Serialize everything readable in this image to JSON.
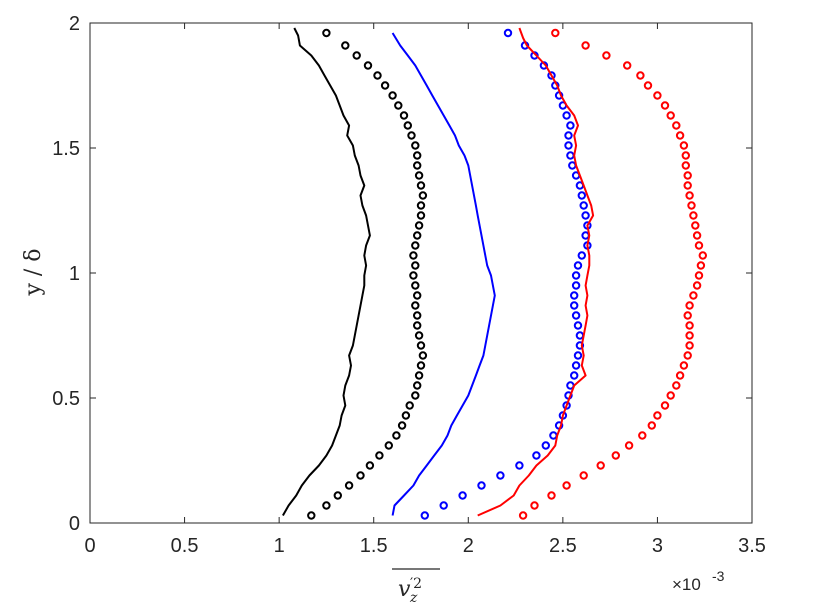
{
  "chart_data": {
    "type": "line",
    "xlabel": "v'z2",
    "ylabel": "y / δ",
    "x_exponent_label": "×10",
    "x_exponent_power": "-3",
    "xlim": [
      0,
      3.5
    ],
    "ylim": [
      0,
      2
    ],
    "xticks": [
      "0",
      "0.5",
      "1",
      "1.5",
      "2",
      "2.5",
      "3",
      "3.5"
    ],
    "yticks": [
      "0",
      "0.5",
      "1",
      "1.5",
      "2"
    ],
    "grid": false,
    "series": [
      {
        "style": "line",
        "color": "#000000",
        "points": [
          [
            1.02,
            0.03
          ],
          [
            1.05,
            0.07
          ],
          [
            1.09,
            0.11
          ],
          [
            1.12,
            0.15
          ],
          [
            1.16,
            0.19
          ],
          [
            1.21,
            0.23
          ],
          [
            1.25,
            0.27
          ],
          [
            1.28,
            0.31
          ],
          [
            1.3,
            0.35
          ],
          [
            1.32,
            0.39
          ],
          [
            1.33,
            0.43
          ],
          [
            1.35,
            0.47
          ],
          [
            1.34,
            0.51
          ],
          [
            1.35,
            0.55
          ],
          [
            1.37,
            0.59
          ],
          [
            1.38,
            0.63
          ],
          [
            1.37,
            0.67
          ],
          [
            1.39,
            0.71
          ],
          [
            1.4,
            0.75
          ],
          [
            1.41,
            0.79
          ],
          [
            1.42,
            0.83
          ],
          [
            1.43,
            0.87
          ],
          [
            1.44,
            0.91
          ],
          [
            1.45,
            0.95
          ],
          [
            1.45,
            0.99
          ],
          [
            1.46,
            1.03
          ],
          [
            1.45,
            1.07
          ],
          [
            1.46,
            1.11
          ],
          [
            1.48,
            1.15
          ],
          [
            1.47,
            1.19
          ],
          [
            1.46,
            1.23
          ],
          [
            1.44,
            1.27
          ],
          [
            1.43,
            1.31
          ],
          [
            1.45,
            1.35
          ],
          [
            1.43,
            1.39
          ],
          [
            1.42,
            1.43
          ],
          [
            1.4,
            1.47
          ],
          [
            1.39,
            1.51
          ],
          [
            1.36,
            1.55
          ],
          [
            1.37,
            1.59
          ],
          [
            1.34,
            1.63
          ],
          [
            1.32,
            1.67
          ],
          [
            1.3,
            1.71
          ],
          [
            1.27,
            1.75
          ],
          [
            1.24,
            1.79
          ],
          [
            1.21,
            1.83
          ],
          [
            1.17,
            1.87
          ],
          [
            1.11,
            1.91
          ],
          [
            1.1,
            1.95
          ],
          [
            1.08,
            1.98
          ]
        ]
      },
      {
        "style": "marker",
        "color": "#000000",
        "points": [
          [
            1.17,
            0.03
          ],
          [
            1.25,
            0.07
          ],
          [
            1.31,
            0.11
          ],
          [
            1.37,
            0.15
          ],
          [
            1.43,
            0.19
          ],
          [
            1.48,
            0.23
          ],
          [
            1.53,
            0.27
          ],
          [
            1.58,
            0.31
          ],
          [
            1.62,
            0.35
          ],
          [
            1.65,
            0.39
          ],
          [
            1.67,
            0.43
          ],
          [
            1.69,
            0.47
          ],
          [
            1.72,
            0.51
          ],
          [
            1.73,
            0.55
          ],
          [
            1.74,
            0.59
          ],
          [
            1.75,
            0.63
          ],
          [
            1.76,
            0.67
          ],
          [
            1.75,
            0.71
          ],
          [
            1.74,
            0.75
          ],
          [
            1.73,
            0.79
          ],
          [
            1.73,
            0.83
          ],
          [
            1.72,
            0.87
          ],
          [
            1.73,
            0.91
          ],
          [
            1.72,
            0.95
          ],
          [
            1.71,
            0.99
          ],
          [
            1.72,
            1.03
          ],
          [
            1.71,
            1.07
          ],
          [
            1.72,
            1.11
          ],
          [
            1.73,
            1.15
          ],
          [
            1.74,
            1.19
          ],
          [
            1.75,
            1.23
          ],
          [
            1.75,
            1.27
          ],
          [
            1.76,
            1.31
          ],
          [
            1.75,
            1.35
          ],
          [
            1.74,
            1.39
          ],
          [
            1.73,
            1.43
          ],
          [
            1.73,
            1.47
          ],
          [
            1.72,
            1.51
          ],
          [
            1.7,
            1.55
          ],
          [
            1.68,
            1.59
          ],
          [
            1.66,
            1.63
          ],
          [
            1.63,
            1.67
          ],
          [
            1.6,
            1.71
          ],
          [
            1.56,
            1.75
          ],
          [
            1.52,
            1.79
          ],
          [
            1.47,
            1.83
          ],
          [
            1.41,
            1.87
          ],
          [
            1.35,
            1.91
          ],
          [
            1.25,
            1.96
          ]
        ]
      },
      {
        "style": "line",
        "color": "#0000ff",
        "points": [
          [
            1.6,
            0.03
          ],
          [
            1.61,
            0.07
          ],
          [
            1.66,
            0.11
          ],
          [
            1.71,
            0.15
          ],
          [
            1.74,
            0.19
          ],
          [
            1.78,
            0.23
          ],
          [
            1.82,
            0.27
          ],
          [
            1.86,
            0.31
          ],
          [
            1.89,
            0.35
          ],
          [
            1.91,
            0.39
          ],
          [
            1.94,
            0.43
          ],
          [
            1.97,
            0.47
          ],
          [
            2.0,
            0.51
          ],
          [
            2.02,
            0.55
          ],
          [
            2.04,
            0.59
          ],
          [
            2.06,
            0.63
          ],
          [
            2.08,
            0.67
          ],
          [
            2.09,
            0.71
          ],
          [
            2.1,
            0.75
          ],
          [
            2.11,
            0.79
          ],
          [
            2.12,
            0.83
          ],
          [
            2.13,
            0.87
          ],
          [
            2.14,
            0.91
          ],
          [
            2.13,
            0.95
          ],
          [
            2.12,
            0.99
          ],
          [
            2.1,
            1.03
          ],
          [
            2.09,
            1.07
          ],
          [
            2.08,
            1.11
          ],
          [
            2.07,
            1.15
          ],
          [
            2.06,
            1.19
          ],
          [
            2.05,
            1.23
          ],
          [
            2.04,
            1.27
          ],
          [
            2.03,
            1.31
          ],
          [
            2.02,
            1.35
          ],
          [
            2.01,
            1.39
          ],
          [
            2.0,
            1.43
          ],
          [
            1.98,
            1.47
          ],
          [
            1.95,
            1.51
          ],
          [
            1.93,
            1.55
          ],
          [
            1.9,
            1.59
          ],
          [
            1.87,
            1.63
          ],
          [
            1.84,
            1.67
          ],
          [
            1.81,
            1.71
          ],
          [
            1.78,
            1.75
          ],
          [
            1.75,
            1.79
          ],
          [
            1.72,
            1.83
          ],
          [
            1.68,
            1.87
          ],
          [
            1.64,
            1.91
          ],
          [
            1.6,
            1.96
          ]
        ]
      },
      {
        "style": "marker",
        "color": "#0000ff",
        "points": [
          [
            1.77,
            0.03
          ],
          [
            1.87,
            0.07
          ],
          [
            1.97,
            0.11
          ],
          [
            2.07,
            0.15
          ],
          [
            2.17,
            0.19
          ],
          [
            2.27,
            0.23
          ],
          [
            2.36,
            0.27
          ],
          [
            2.41,
            0.31
          ],
          [
            2.45,
            0.35
          ],
          [
            2.48,
            0.39
          ],
          [
            2.5,
            0.43
          ],
          [
            2.52,
            0.47
          ],
          [
            2.53,
            0.51
          ],
          [
            2.54,
            0.55
          ],
          [
            2.56,
            0.59
          ],
          [
            2.57,
            0.63
          ],
          [
            2.58,
            0.67
          ],
          [
            2.59,
            0.71
          ],
          [
            2.59,
            0.75
          ],
          [
            2.58,
            0.79
          ],
          [
            2.57,
            0.83
          ],
          [
            2.56,
            0.87
          ],
          [
            2.56,
            0.91
          ],
          [
            2.57,
            0.95
          ],
          [
            2.57,
            0.99
          ],
          [
            2.58,
            1.03
          ],
          [
            2.6,
            1.07
          ],
          [
            2.63,
            1.11
          ],
          [
            2.62,
            1.15
          ],
          [
            2.63,
            1.19
          ],
          [
            2.62,
            1.23
          ],
          [
            2.61,
            1.27
          ],
          [
            2.6,
            1.31
          ],
          [
            2.59,
            1.35
          ],
          [
            2.57,
            1.39
          ],
          [
            2.55,
            1.43
          ],
          [
            2.54,
            1.47
          ],
          [
            2.53,
            1.51
          ],
          [
            2.53,
            1.55
          ],
          [
            2.54,
            1.59
          ],
          [
            2.52,
            1.63
          ],
          [
            2.5,
            1.67
          ],
          [
            2.48,
            1.71
          ],
          [
            2.46,
            1.75
          ],
          [
            2.44,
            1.79
          ],
          [
            2.4,
            1.83
          ],
          [
            2.35,
            1.87
          ],
          [
            2.3,
            1.91
          ],
          [
            2.21,
            1.96
          ]
        ]
      },
      {
        "style": "line",
        "color": "#ff0000",
        "points": [
          [
            2.05,
            0.03
          ],
          [
            2.17,
            0.07
          ],
          [
            2.24,
            0.11
          ],
          [
            2.27,
            0.15
          ],
          [
            2.32,
            0.19
          ],
          [
            2.36,
            0.23
          ],
          [
            2.42,
            0.27
          ],
          [
            2.46,
            0.31
          ],
          [
            2.47,
            0.35
          ],
          [
            2.49,
            0.39
          ],
          [
            2.5,
            0.43
          ],
          [
            2.52,
            0.47
          ],
          [
            2.54,
            0.51
          ],
          [
            2.56,
            0.55
          ],
          [
            2.62,
            0.59
          ],
          [
            2.6,
            0.63
          ],
          [
            2.61,
            0.67
          ],
          [
            2.6,
            0.71
          ],
          [
            2.61,
            0.75
          ],
          [
            2.62,
            0.79
          ],
          [
            2.63,
            0.83
          ],
          [
            2.62,
            0.87
          ],
          [
            2.63,
            0.91
          ],
          [
            2.62,
            0.95
          ],
          [
            2.63,
            0.99
          ],
          [
            2.64,
            1.03
          ],
          [
            2.64,
            1.07
          ],
          [
            2.63,
            1.11
          ],
          [
            2.64,
            1.15
          ],
          [
            2.63,
            1.19
          ],
          [
            2.66,
            1.23
          ],
          [
            2.65,
            1.27
          ],
          [
            2.63,
            1.31
          ],
          [
            2.61,
            1.35
          ],
          [
            2.59,
            1.39
          ],
          [
            2.57,
            1.43
          ],
          [
            2.56,
            1.47
          ],
          [
            2.57,
            1.51
          ],
          [
            2.56,
            1.55
          ],
          [
            2.58,
            1.59
          ],
          [
            2.56,
            1.63
          ],
          [
            2.52,
            1.67
          ],
          [
            2.49,
            1.71
          ],
          [
            2.47,
            1.75
          ],
          [
            2.44,
            1.79
          ],
          [
            2.41,
            1.83
          ],
          [
            2.36,
            1.87
          ],
          [
            2.31,
            1.91
          ],
          [
            2.29,
            1.94
          ],
          [
            2.27,
            1.98
          ]
        ]
      },
      {
        "style": "marker",
        "color": "#ff0000",
        "points": [
          [
            2.29,
            0.03
          ],
          [
            2.35,
            0.07
          ],
          [
            2.44,
            0.11
          ],
          [
            2.52,
            0.15
          ],
          [
            2.61,
            0.19
          ],
          [
            2.7,
            0.23
          ],
          [
            2.78,
            0.27
          ],
          [
            2.85,
            0.31
          ],
          [
            2.92,
            0.35
          ],
          [
            2.97,
            0.39
          ],
          [
            3.0,
            0.43
          ],
          [
            3.04,
            0.47
          ],
          [
            3.07,
            0.51
          ],
          [
            3.1,
            0.55
          ],
          [
            3.12,
            0.59
          ],
          [
            3.14,
            0.63
          ],
          [
            3.16,
            0.67
          ],
          [
            3.17,
            0.71
          ],
          [
            3.17,
            0.75
          ],
          [
            3.17,
            0.79
          ],
          [
            3.16,
            0.83
          ],
          [
            3.17,
            0.87
          ],
          [
            3.19,
            0.91
          ],
          [
            3.21,
            0.95
          ],
          [
            3.22,
            0.99
          ],
          [
            3.23,
            1.03
          ],
          [
            3.24,
            1.07
          ],
          [
            3.22,
            1.11
          ],
          [
            3.21,
            1.15
          ],
          [
            3.2,
            1.19
          ],
          [
            3.19,
            1.23
          ],
          [
            3.18,
            1.27
          ],
          [
            3.17,
            1.31
          ],
          [
            3.16,
            1.35
          ],
          [
            3.16,
            1.39
          ],
          [
            3.15,
            1.43
          ],
          [
            3.15,
            1.47
          ],
          [
            3.14,
            1.51
          ],
          [
            3.12,
            1.55
          ],
          [
            3.1,
            1.59
          ],
          [
            3.07,
            1.63
          ],
          [
            3.04,
            1.67
          ],
          [
            3.0,
            1.71
          ],
          [
            2.95,
            1.75
          ],
          [
            2.91,
            1.79
          ],
          [
            2.84,
            1.83
          ],
          [
            2.73,
            1.87
          ],
          [
            2.62,
            1.91
          ],
          [
            2.46,
            1.96
          ]
        ]
      }
    ]
  }
}
